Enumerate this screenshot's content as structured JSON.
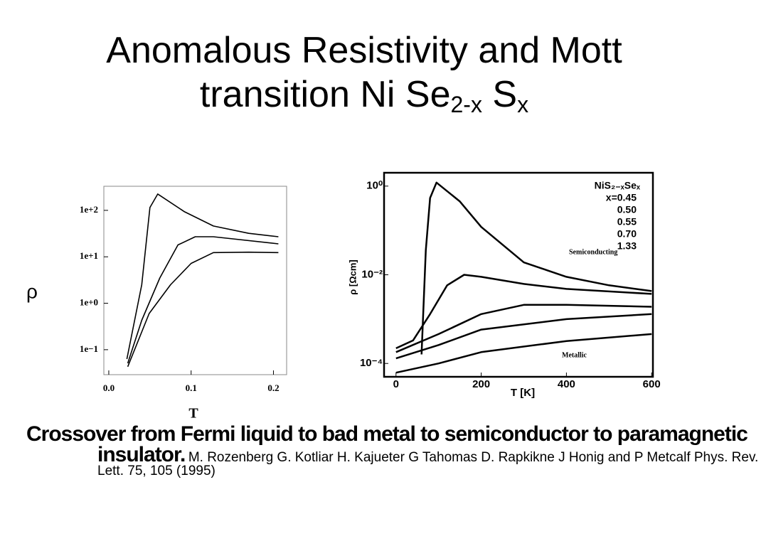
{
  "title": {
    "text": "Anomalous Resistivity and Mott transition Ni Se",
    "sub1": "2-x",
    "mid": " S",
    "sub2": "x"
  },
  "caption": {
    "bold": "Crossover from Fermi liquid to bad metal to semiconductor to paramagnetic insulator.",
    "citation": "M. Rozenberg G. Kotliar H. Kajueter G Tahomas D. Rapkikne J Honig and P Metcalf Phys. Rev. Lett. 75, 105 (1995)"
  },
  "chart_data": [
    {
      "type": "line",
      "xlabel": "T",
      "ylabel": "ρ",
      "log_y": true,
      "xlim": [
        -0.006,
        0.216
      ],
      "ylim": [
        0.029,
        330
      ],
      "xticks": [
        {
          "value": 0,
          "label": "0.0"
        },
        0.1,
        0.2
      ],
      "yticks": [
        {
          "value": 0.1,
          "label": "1e−1"
        },
        {
          "value": 1,
          "label": "1e+0"
        },
        {
          "value": 10,
          "label": "1e+1"
        },
        {
          "value": 100,
          "label": "1e+2"
        }
      ],
      "series": [
        {
          "color": "#000000",
          "x": [
            0.022,
            0.04,
            0.05,
            0.0595,
            0.092,
            0.127,
            0.17,
            0.206
          ],
          "values": [
            0.063,
            2.5,
            115,
            225,
            93,
            46,
            32,
            27
          ]
        },
        {
          "color": "#000000",
          "x": [
            0.023,
            0.04,
            0.062,
            0.084,
            0.105,
            0.127,
            0.206
          ],
          "values": [
            0.051,
            0.43,
            3.5,
            18,
            27,
            27,
            19
          ]
        },
        {
          "color": "#000000",
          "x": [
            0.023,
            0.049,
            0.075,
            0.1,
            0.127,
            0.17,
            0.206
          ],
          "values": [
            0.043,
            0.6,
            2.5,
            7.2,
            12.3,
            12.6,
            12.3
          ]
        }
      ]
    },
    {
      "type": "line",
      "xlabel": "T [K]",
      "ylabel": "ρ [Ωcm]",
      "log_y": true,
      "xlim": [
        -28,
        603
      ],
      "ylim": [
        5e-05,
        2
      ],
      "xticks": [
        0,
        200,
        400,
        600
      ],
      "yticks": [
        {
          "value": 0.0001,
          "label": "10⁻⁴"
        },
        {
          "value": 0.01,
          "label": "10⁻²"
        },
        {
          "value": 1,
          "label": "10⁰"
        }
      ],
      "legend_title": "NiS₂₋ₓSeₓ",
      "annotations": [
        "Semiconducting",
        "Metallic"
      ],
      "series": [
        {
          "name": "x=0.45",
          "color": "#000000",
          "x": [
            60,
            70,
            80,
            95,
            150,
            200,
            300,
            400,
            500,
            600
          ],
          "values": [
            0.00016,
            0.036,
            0.54,
            1.2,
            0.45,
            0.12,
            0.019,
            0.009,
            0.0058,
            0.0043
          ]
        },
        {
          "name": "0.50",
          "color": "#000000",
          "x": [
            0,
            40,
            80,
            120,
            160,
            200,
            300,
            400,
            600
          ],
          "values": [
            0.00022,
            0.00033,
            0.0013,
            0.0058,
            0.01,
            0.009,
            0.0062,
            0.0048,
            0.0037
          ]
        },
        {
          "name": "0.55",
          "color": "#000000",
          "x": [
            0,
            100,
            200,
            300,
            400,
            600
          ],
          "values": [
            0.00018,
            0.00046,
            0.0013,
            0.0021,
            0.0021,
            0.0019
          ]
        },
        {
          "name": "0.70",
          "color": "#000000",
          "x": [
            0,
            100,
            200,
            400,
            600
          ],
          "values": [
            0.00013,
            0.00026,
            0.00058,
            0.001,
            0.0013
          ]
        },
        {
          "name": "1.33",
          "color": "#000000",
          "x": [
            0,
            100,
            200,
            400,
            600
          ],
          "values": [
            6.2e-05,
            0.0001,
            0.00018,
            0.00032,
            0.00046
          ]
        }
      ]
    }
  ]
}
